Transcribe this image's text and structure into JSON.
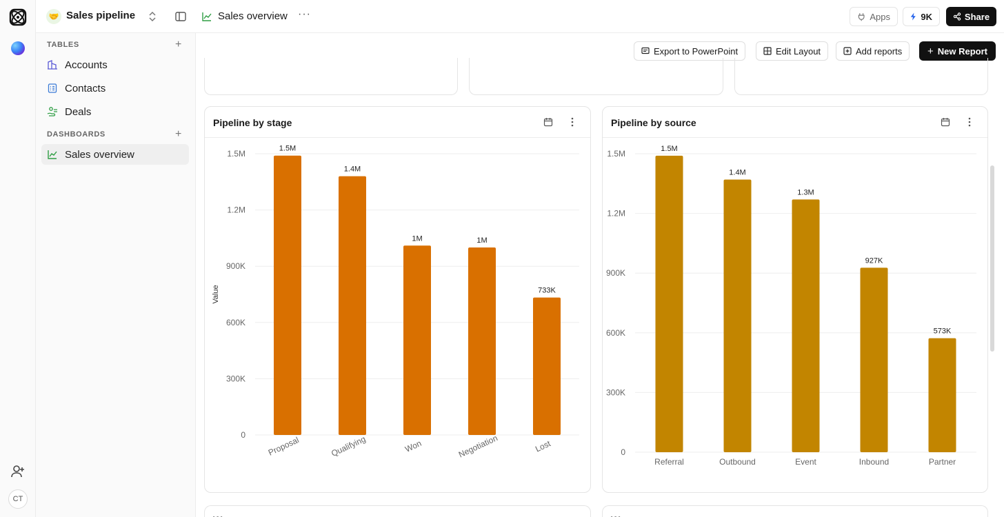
{
  "topbar": {
    "workspace_emoji": "🤝",
    "workspace_name": "Sales pipeline",
    "page_title": "Sales overview",
    "apps_label": "Apps",
    "credits_label": "9K",
    "share_label": "Share"
  },
  "rail": {
    "avatar_initials": "CT"
  },
  "sidebar": {
    "tables_label": "TABLES",
    "dashboards_label": "DASHBOARDS",
    "tables": [
      {
        "label": "Accounts",
        "icon": "building-icon"
      },
      {
        "label": "Contacts",
        "icon": "contact-list-icon"
      },
      {
        "label": "Deals",
        "icon": "money-hand-icon"
      }
    ],
    "dashboards": [
      {
        "label": "Sales overview",
        "icon": "line-chart-icon"
      }
    ]
  },
  "actions": {
    "export_label": "Export to PowerPoint",
    "edit_layout_label": "Edit Layout",
    "add_reports_label": "Add reports",
    "new_report_label": "New Report"
  },
  "colors": {
    "stage_bar": "#d97000",
    "source_bar": "#c28500",
    "accent_green": "#2f9e44"
  },
  "cards": {
    "stage_title": "Pipeline by stage",
    "source_title": "Pipeline by source",
    "next_left_title": "W",
    "next_right_title": "W"
  },
  "chart_data": [
    {
      "type": "bar",
      "title": "Pipeline by stage",
      "ylabel": "Value",
      "xlabel": "",
      "categories": [
        "Proposal",
        "Qualifying",
        "Won",
        "Negotiation",
        "Lost"
      ],
      "values": [
        1490000,
        1380000,
        1010000,
        1000000,
        733000
      ],
      "data_labels": [
        "1.5M",
        "1.4M",
        "1M",
        "1M",
        "733K"
      ],
      "yticks": [
        0,
        300000,
        600000,
        900000,
        1200000,
        1500000
      ],
      "ytick_labels": [
        "0",
        "300K",
        "600K",
        "900K",
        "1.2M",
        "1.5M"
      ],
      "ylim": [
        0,
        1500000
      ],
      "grid": true
    },
    {
      "type": "bar",
      "title": "Pipeline by source",
      "ylabel": "",
      "xlabel": "",
      "categories": [
        "Referral",
        "Outbound",
        "Event",
        "Inbound",
        "Partner"
      ],
      "values": [
        1490000,
        1370000,
        1270000,
        927000,
        573000
      ],
      "data_labels": [
        "1.5M",
        "1.4M",
        "1.3M",
        "927K",
        "573K"
      ],
      "yticks": [
        0,
        300000,
        600000,
        900000,
        1200000,
        1500000
      ],
      "ytick_labels": [
        "0",
        "300K",
        "600K",
        "900K",
        "1.2M",
        "1.5M"
      ],
      "ylim": [
        0,
        1500000
      ],
      "grid": true
    }
  ]
}
